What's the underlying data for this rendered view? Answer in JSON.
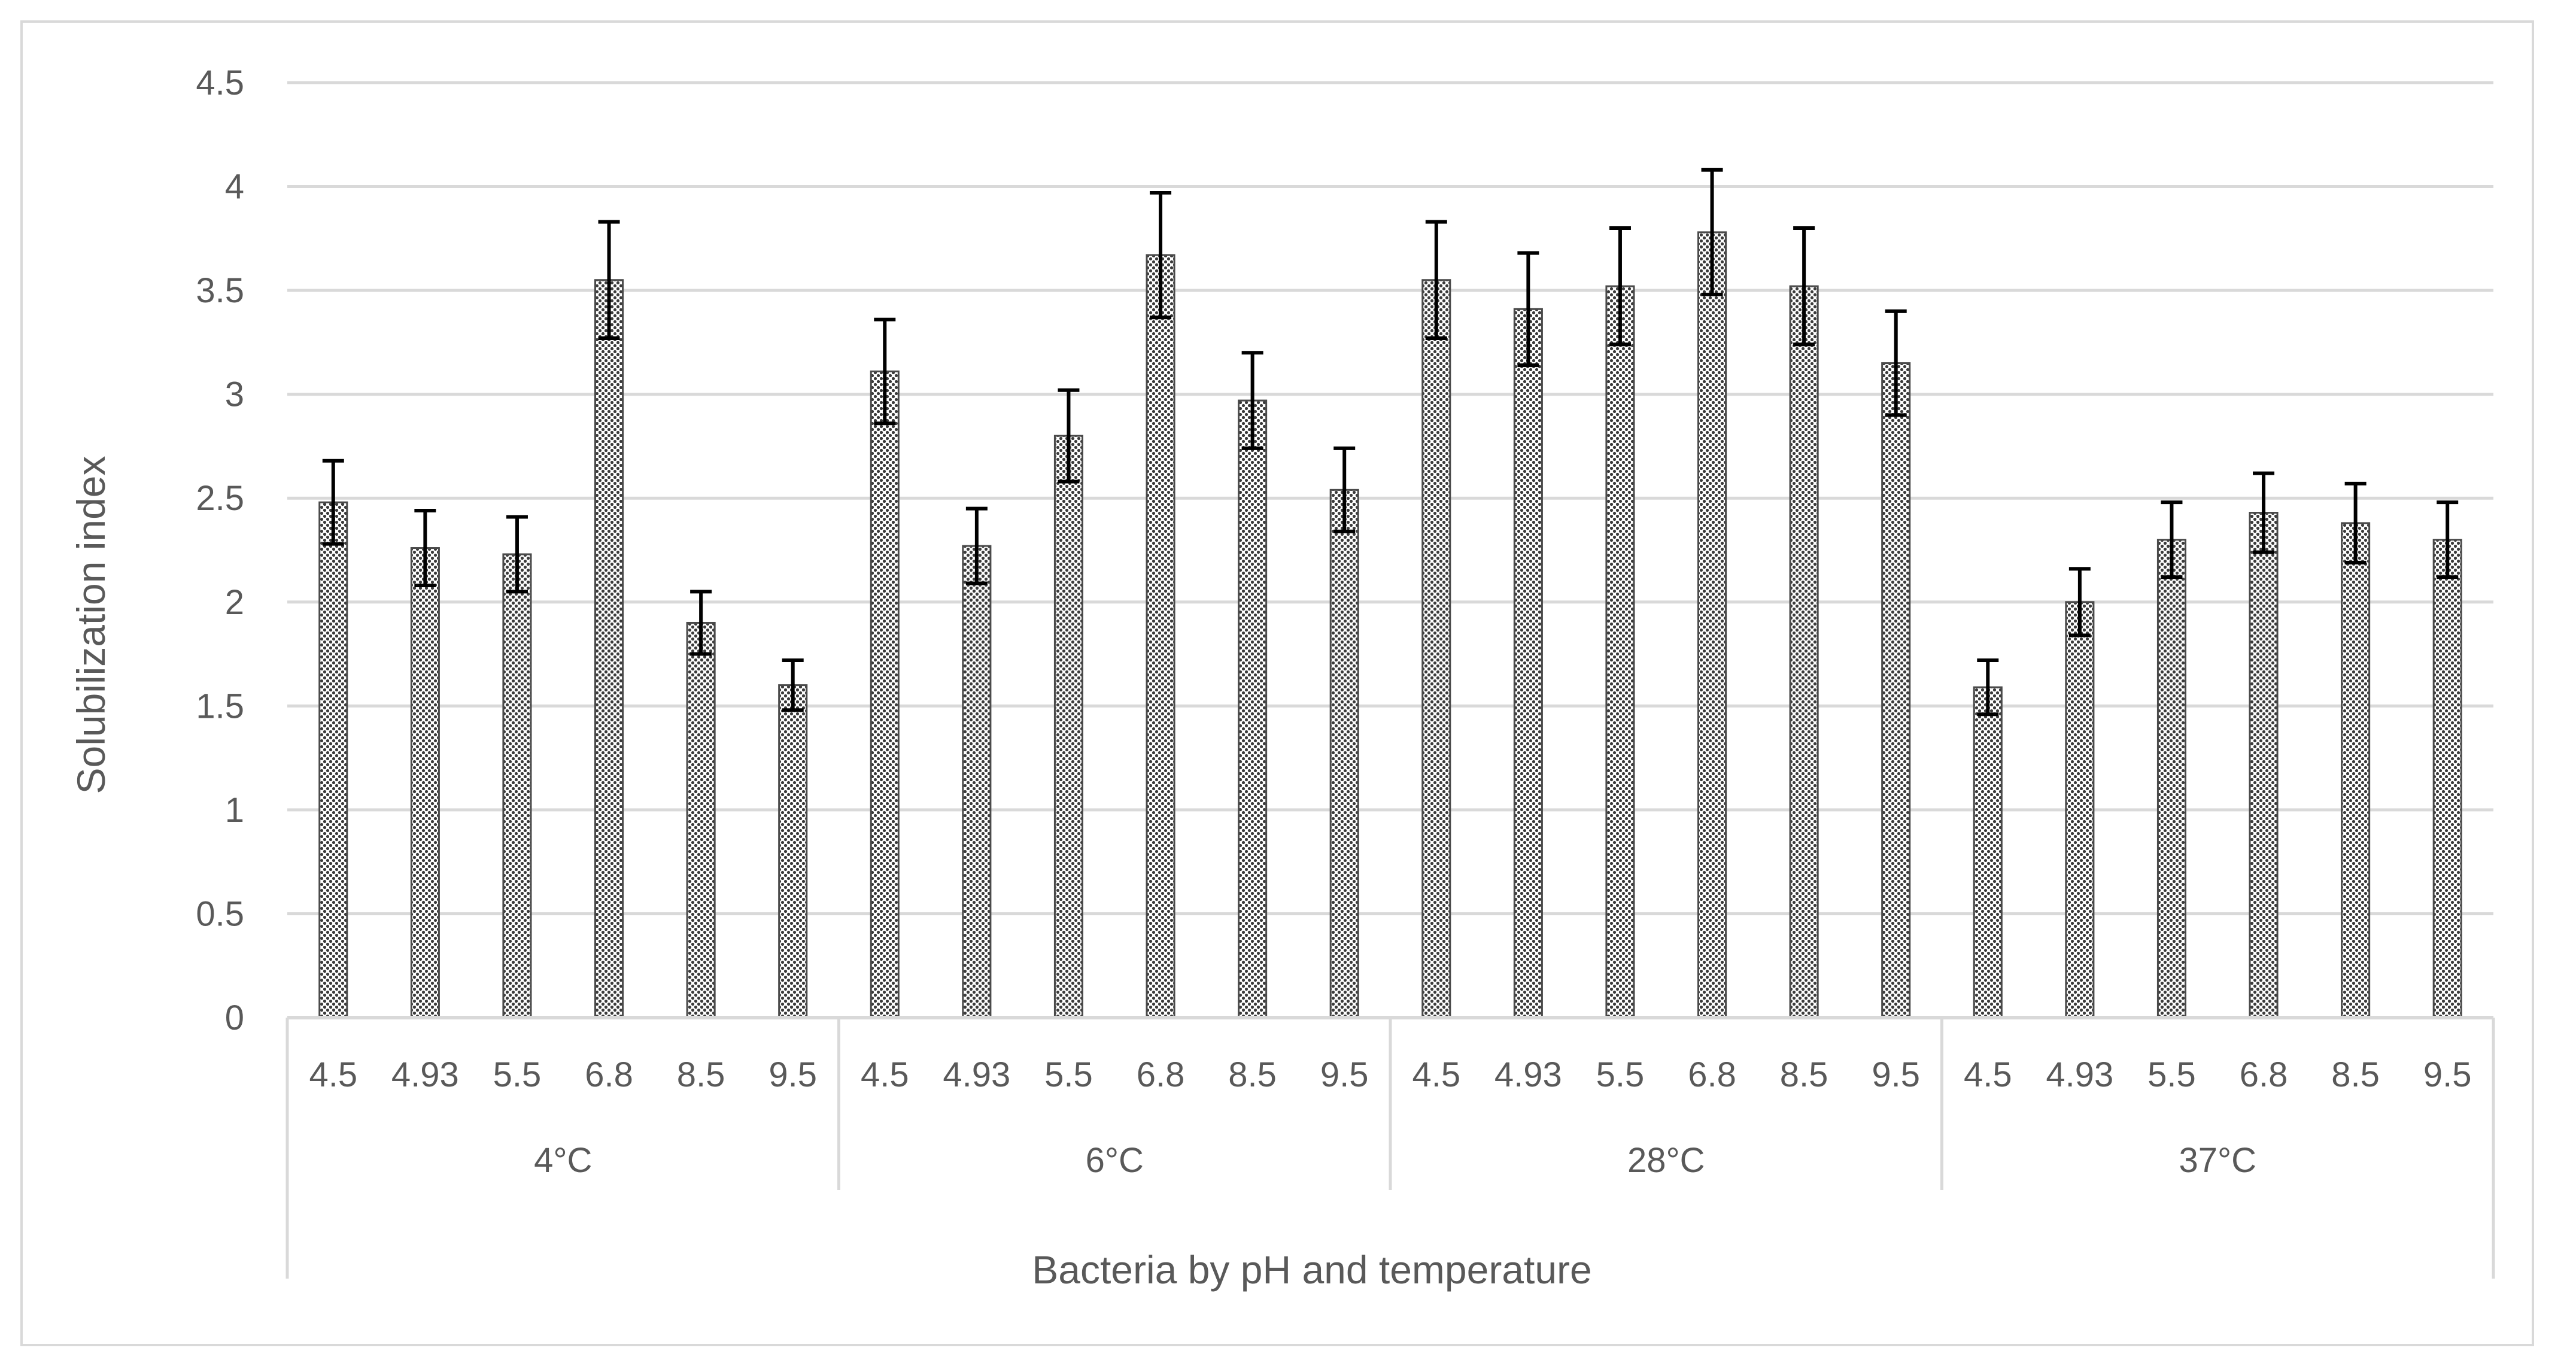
{
  "chart_data": {
    "type": "bar",
    "title": "",
    "xlabel": "Bacteria by pH and temperature",
    "ylabel": "Solubilization index",
    "ylim": [
      0,
      4.5
    ],
    "yticks": [
      "0",
      "0.5",
      "1",
      "1.5",
      "2",
      "2.5",
      "3",
      "3.5",
      "4",
      "4.5"
    ],
    "groups": [
      {
        "label": "4°C",
        "categories": [
          "4.5",
          "4.93",
          "5.5",
          "6.8",
          "8.5",
          "9.5"
        ],
        "values": [
          2.48,
          2.26,
          2.23,
          3.55,
          1.9,
          1.6
        ],
        "errors": [
          0.2,
          0.18,
          0.18,
          0.28,
          0.15,
          0.12
        ]
      },
      {
        "label": "6°C",
        "categories": [
          "4.5",
          "4.93",
          "5.5",
          "6.8",
          "8.5",
          "9.5"
        ],
        "values": [
          3.11,
          2.27,
          2.8,
          3.67,
          2.97,
          2.54
        ],
        "errors": [
          0.25,
          0.18,
          0.22,
          0.3,
          0.23,
          0.2
        ]
      },
      {
        "label": "28°C",
        "categories": [
          "4.5",
          "4.93",
          "5.5",
          "6.8",
          "8.5",
          "9.5"
        ],
        "values": [
          3.55,
          3.41,
          3.52,
          3.78,
          3.52,
          3.15
        ],
        "errors": [
          0.28,
          0.27,
          0.28,
          0.3,
          0.28,
          0.25
        ]
      },
      {
        "label": "37°C",
        "categories": [
          "4.5",
          "4.93",
          "5.5",
          "6.8",
          "8.5",
          "9.5"
        ],
        "values": [
          1.59,
          2.0,
          2.3,
          2.43,
          2.38,
          2.3
        ],
        "errors": [
          0.13,
          0.16,
          0.18,
          0.19,
          0.19,
          0.18
        ]
      }
    ],
    "colors": {
      "bar": "#4a4a4a",
      "error_bar": "#000000",
      "grid": "#d9d9d9",
      "text": "#595959"
    }
  }
}
